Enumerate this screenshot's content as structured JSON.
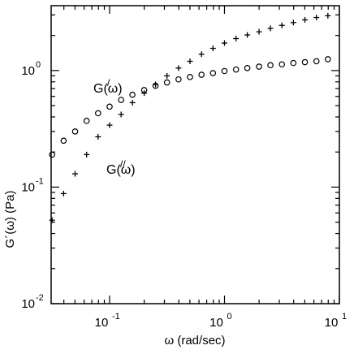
{
  "chart_data": {
    "type": "scatter",
    "xlabel": "ω (rad/sec)",
    "ylabel": "G´(ω) (Pa)",
    "xscale": "log",
    "yscale": "log",
    "xlim": [
      0.031,
      10
    ],
    "ylim": [
      0.01,
      3.6
    ],
    "x_ticks": [
      {
        "value": 0.1,
        "base": "10",
        "exp": "-1"
      },
      {
        "value": 1,
        "base": "10",
        "exp": "0"
      },
      {
        "value": 10,
        "base": "10",
        "exp": "1"
      }
    ],
    "y_ticks": [
      {
        "value": 0.01,
        "base": "10",
        "exp": "-2"
      },
      {
        "value": 0.1,
        "base": "10",
        "exp": "-1"
      },
      {
        "value": 1,
        "base": "10",
        "exp": "0"
      }
    ],
    "grid": false,
    "legend": "none",
    "annotations": [
      {
        "text": "G(ω)",
        "prime": "/",
        "series": "circles"
      },
      {
        "text": "G(ω)",
        "prime": "//",
        "series": "plus"
      }
    ],
    "series": [
      {
        "marker": "circle",
        "x": [
          0.0316,
          0.0398,
          0.0501,
          0.0631,
          0.0794,
          0.1,
          0.126,
          0.158,
          0.2,
          0.251,
          0.316,
          0.398,
          0.501,
          0.631,
          0.794,
          1.0,
          1.26,
          1.58,
          2.0,
          2.51,
          3.16,
          3.98,
          5.01,
          6.31,
          7.94
        ],
        "y": [
          0.19,
          0.25,
          0.3,
          0.37,
          0.43,
          0.49,
          0.56,
          0.62,
          0.68,
          0.74,
          0.79,
          0.84,
          0.88,
          0.92,
          0.95,
          0.99,
          1.02,
          1.05,
          1.08,
          1.11,
          1.13,
          1.16,
          1.18,
          1.2,
          1.25
        ]
      },
      {
        "marker": "plus",
        "x": [
          0.0316,
          0.0398,
          0.0501,
          0.0631,
          0.0794,
          0.1,
          0.126,
          0.158,
          0.2,
          0.251,
          0.316,
          0.398,
          0.501,
          0.631,
          0.794,
          1.0,
          1.26,
          1.58,
          2.0,
          2.51,
          3.16,
          3.98,
          5.01,
          6.31,
          7.94
        ],
        "y": [
          0.052,
          0.088,
          0.13,
          0.19,
          0.27,
          0.34,
          0.42,
          0.53,
          0.64,
          0.76,
          0.9,
          1.05,
          1.2,
          1.38,
          1.55,
          1.72,
          1.88,
          2.02,
          2.15,
          2.3,
          2.44,
          2.58,
          2.72,
          2.85,
          2.95
        ]
      }
    ]
  }
}
